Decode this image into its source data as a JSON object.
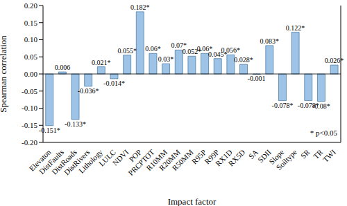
{
  "chart_data": {
    "type": "bar",
    "x_label": "Impact factor",
    "y_label": "Spearman correlation",
    "annotation": "* p<0.05",
    "categories": [
      "Elevaton",
      "DistFaults",
      "DistRoads",
      "DistRivers",
      "Lithology",
      "LULC",
      "NDVI",
      "POP",
      "PRCPTOT",
      "R10MM",
      "R20MM",
      "R50MM",
      "R95P",
      "R99P",
      "RX1D",
      "RX5D",
      "SA",
      "SDII",
      "Slope",
      "Soiltype",
      "SR",
      "TR",
      "TWI"
    ],
    "values": [
      -0.151,
      0.006,
      -0.133,
      -0.036,
      0.021,
      -0.014,
      0.055,
      0.182,
      0.06,
      0.03,
      0.07,
      0.052,
      0.06,
      0.045,
      0.056,
      0.028,
      -0.001,
      0.083,
      -0.078,
      0.122,
      -0.078,
      -0.08,
      0.026
    ],
    "value_labels": [
      "-0.151*",
      "0.006",
      "-0.133*",
      "-0.036*",
      "0.021*",
      "-0.014*",
      "0.055*",
      "0.182*",
      "0.06*",
      "0.03*",
      "0.07*",
      "0.052*",
      "0.06*",
      "0.045*",
      "0.056*",
      "0.028*",
      "-0.001",
      "0.083*",
      "-0.078*",
      "0.122*",
      "-0.078*",
      "-0.08*",
      "0.026*"
    ],
    "color": "#9dc3e6",
    "ylim": [
      -0.2,
      0.2
    ],
    "yticks": [
      {
        "value": -0.2,
        "label": "-0.20"
      },
      {
        "value": -0.15,
        "label": "-0.15"
      },
      {
        "value": -0.1,
        "label": "-0.10"
      },
      {
        "value": -0.05,
        "label": "-0.05"
      },
      {
        "value": 0,
        "label": "0.00"
      },
      {
        "value": 0.05,
        "label": "0.05"
      },
      {
        "value": 0.1,
        "label": "0.10"
      },
      {
        "value": 0.15,
        "label": "0.15"
      },
      {
        "value": 0.2,
        "label": "0.20"
      }
    ],
    "grid": false,
    "data_labels": true
  }
}
